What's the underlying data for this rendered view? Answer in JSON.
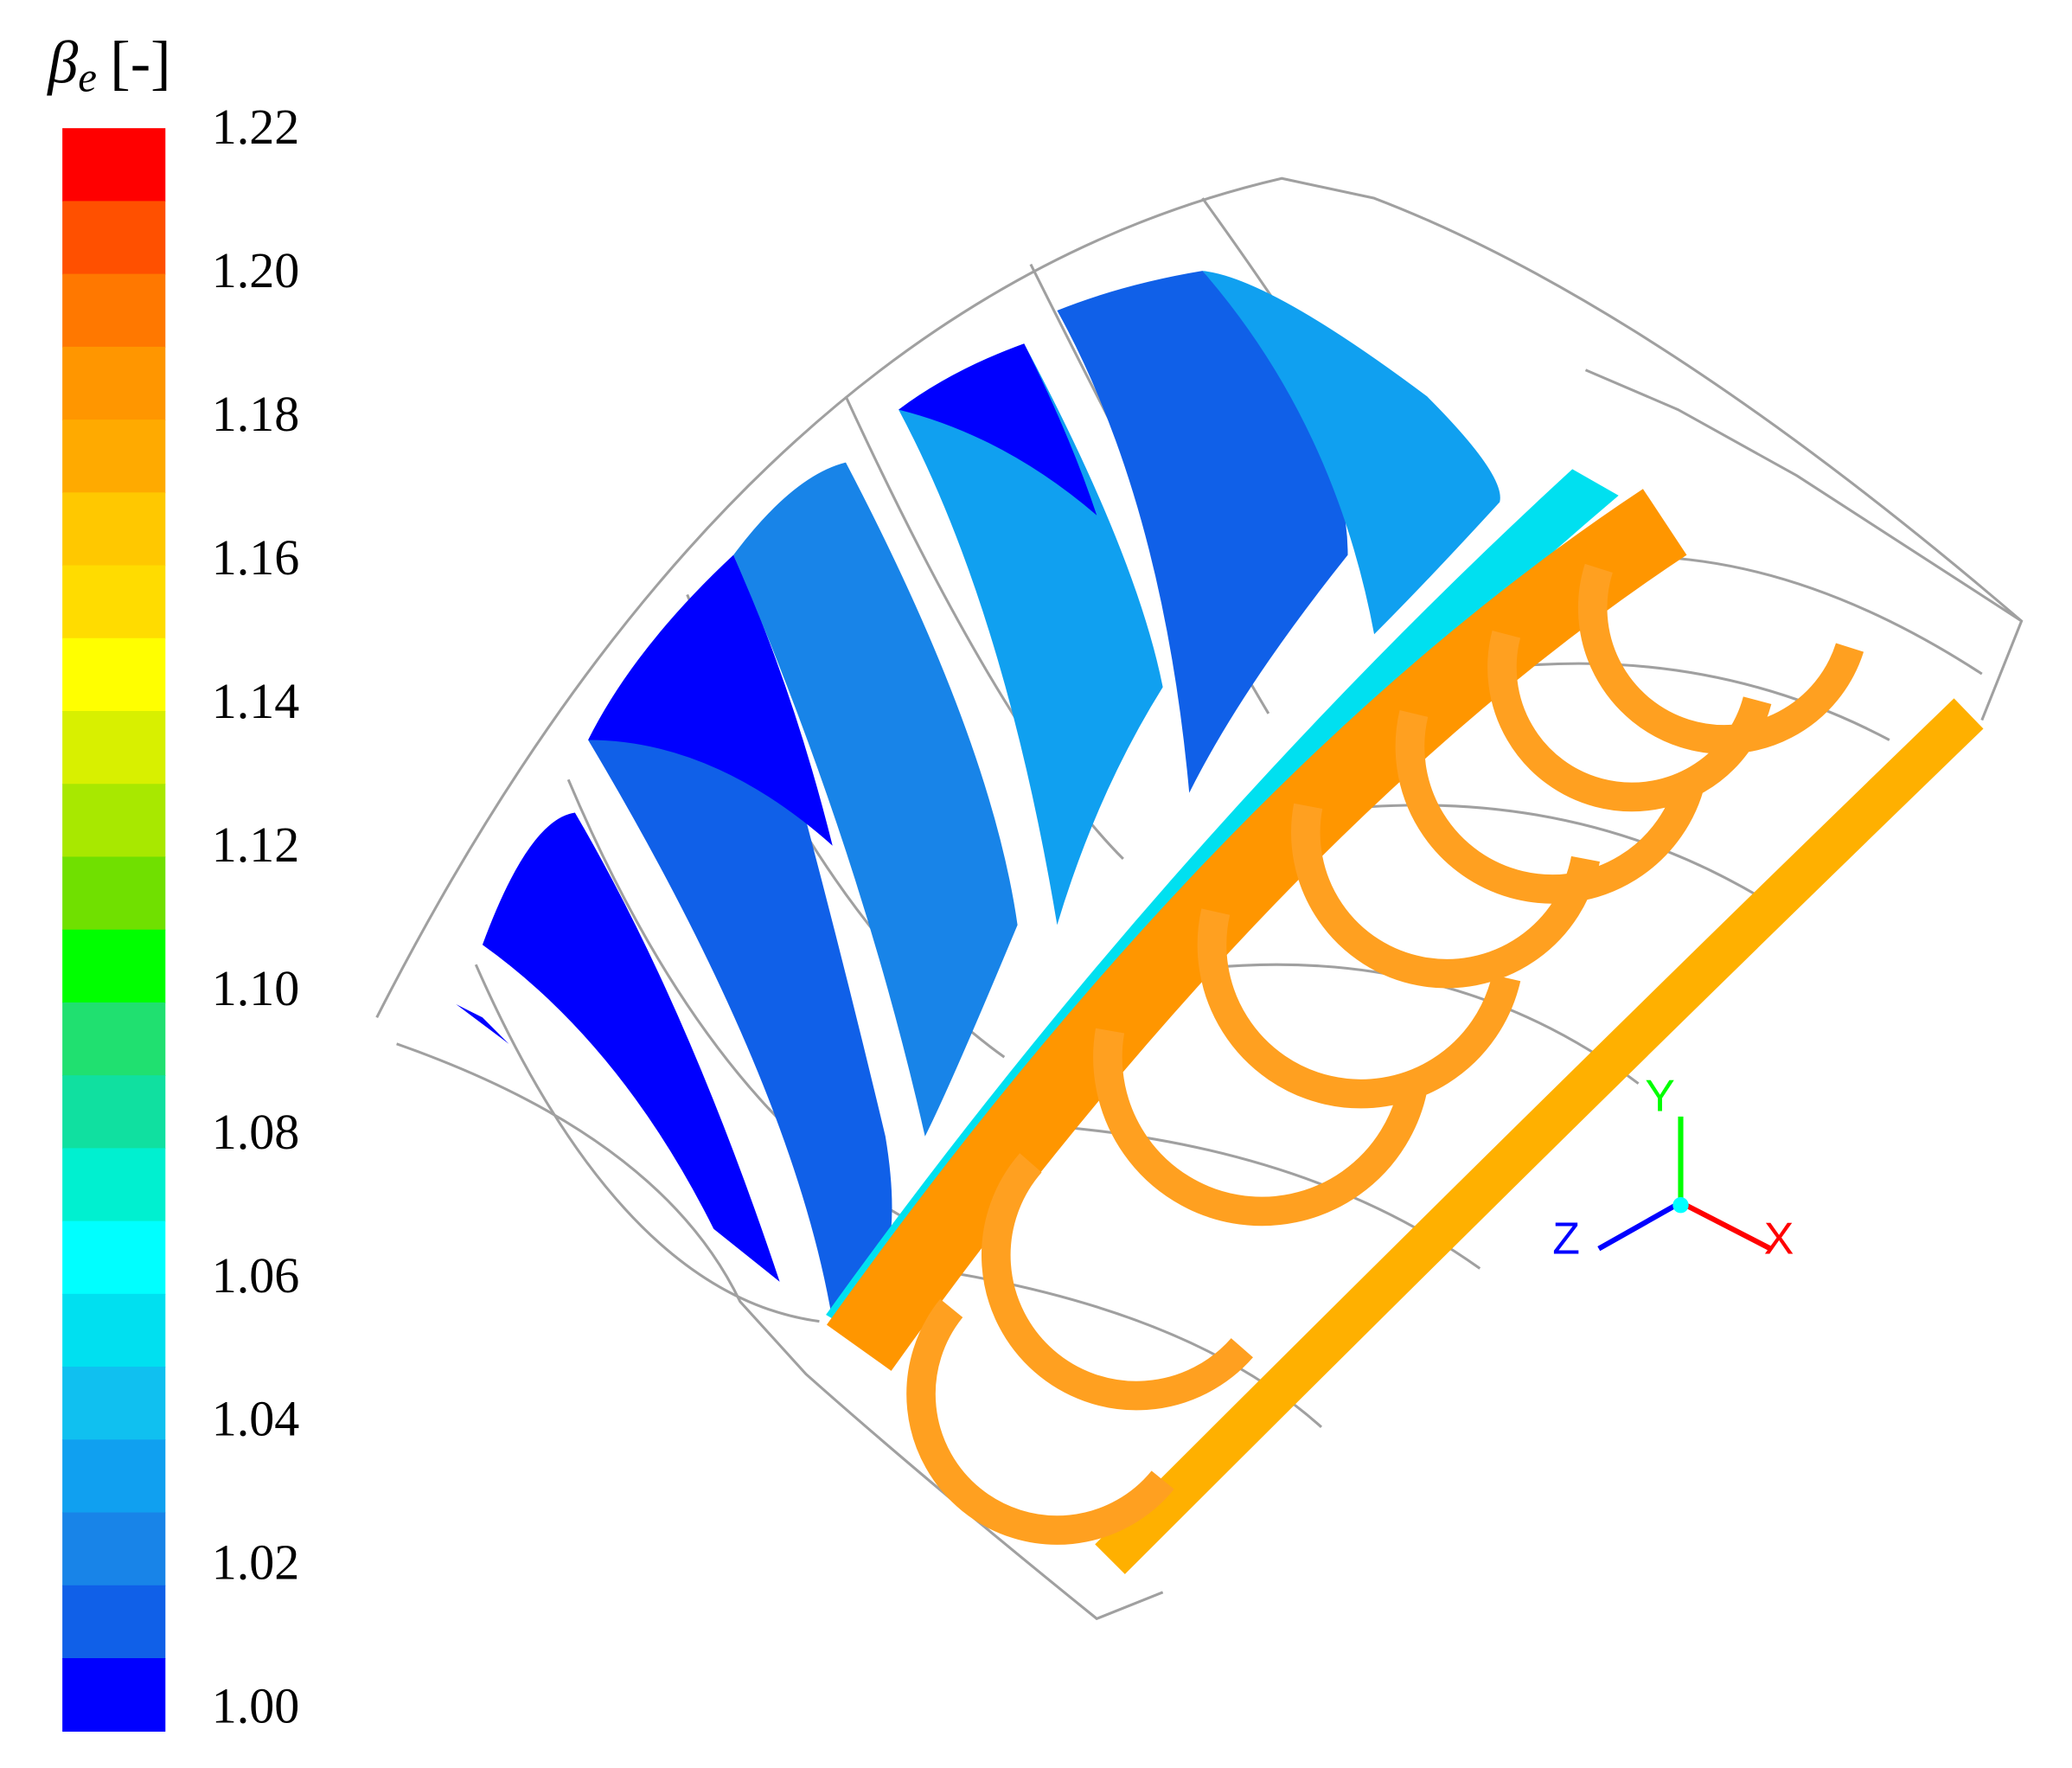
{
  "colorbar": {
    "symbol": "β",
    "subscript": "e",
    "unit": "[-]",
    "lim": [
      1,
      1.22
    ],
    "ticks": [
      1.22,
      {
        "value": 1.2,
        "label": "1.20"
      },
      1.18,
      1.16,
      1.14,
      1.12,
      {
        "value": 1.1,
        "label": "1.10"
      },
      1.08,
      1.06,
      1.04,
      1.02,
      {
        "value": 1,
        "label": "1.00"
      }
    ],
    "band_colors": [
      "#ff0000",
      "#ff5000",
      "#ff7800",
      "#ff9600",
      "#ffaa00",
      "#ffc800",
      "#ffdc00",
      "#ffff00",
      "#d8f000",
      "#a8e800",
      "#70e000",
      "#00ff00",
      "#20e070",
      "#10e0a0",
      "#00f0d0",
      "#00ffff",
      "#00e0f0",
      "#10c0f0",
      "#10a0f0",
      "#1884e8",
      "#1060e8",
      "#0000ff"
    ]
  },
  "axes_triad": {
    "x": "X",
    "y": "Y",
    "z": "Z"
  }
}
